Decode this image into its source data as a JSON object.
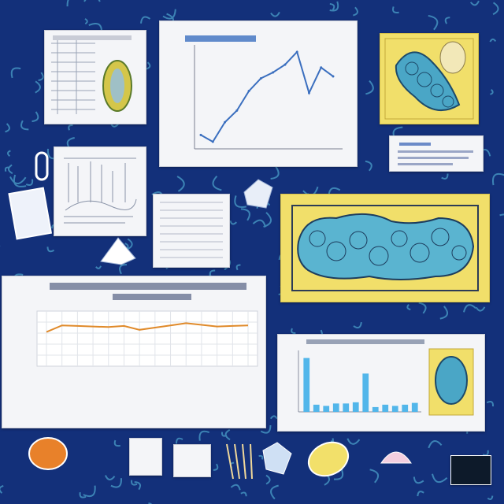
{
  "colors": {
    "background": "#13307a",
    "accent": "#5fc7e6",
    "paper": "#f4f5f8",
    "yellow_card": "#f1df6a",
    "line_orange": "#e08a2a",
    "line_blue": "#3b6fbf",
    "bar_blue": "#52b6ea"
  },
  "panels": [
    {
      "name": "table-card",
      "kind": "table with leaf illustration"
    },
    {
      "name": "line-chart-card",
      "kind": "line chart"
    },
    {
      "name": "cell-illustration-card-top",
      "kind": "illustration"
    },
    {
      "name": "note-card-right",
      "kind": "text card"
    },
    {
      "name": "sketch-chart-card",
      "kind": "hand-drawn chart"
    },
    {
      "name": "lined-note-card",
      "kind": "lined paper"
    },
    {
      "name": "cell-illustration-card-large",
      "kind": "illustration"
    },
    {
      "name": "orange-line-chart-card",
      "kind": "line chart"
    },
    {
      "name": "bar-chart-card",
      "kind": "bar chart with illustration"
    }
  ],
  "chart_data": [
    {
      "type": "line",
      "x": [
        0,
        1,
        2,
        3,
        4,
        5,
        6,
        7,
        8,
        9,
        10,
        11
      ],
      "series": [
        {
          "values": [
            22,
            8,
            48,
            72,
            112,
            138,
            150,
            166,
            192,
            108,
            160,
            142
          ]
        }
      ],
      "title": "",
      "xlabel": "",
      "ylabel": ""
    },
    {
      "type": "line",
      "x": [
        0,
        1,
        2,
        3,
        4,
        5,
        6,
        7,
        8,
        9,
        10,
        11,
        12,
        13
      ],
      "series": [
        {
          "values": [
            62,
            74,
            73,
            72,
            71,
            73,
            66,
            70,
            74,
            78,
            75,
            72,
            73,
            74
          ]
        }
      ],
      "title": "",
      "xlabel": "",
      "ylabel": ""
    },
    {
      "type": "bar",
      "categories": [
        "1",
        "2",
        "3",
        "4",
        "5",
        "6",
        "7",
        "8",
        "9",
        "10",
        "11",
        "12"
      ],
      "values": [
        90,
        12,
        10,
        14,
        14,
        16,
        64,
        8,
        12,
        10,
        12,
        15
      ],
      "title": "",
      "xlabel": "",
      "ylabel": ""
    }
  ],
  "stickers": [
    "orange-fruit",
    "photo-note",
    "photo-note",
    "striped-feather",
    "lemon",
    "shell",
    "dark-photo"
  ],
  "icons": [
    "leaf-icon",
    "gem-icon",
    "paperclip-icon",
    "crystal-icon",
    "feather-icon"
  ]
}
